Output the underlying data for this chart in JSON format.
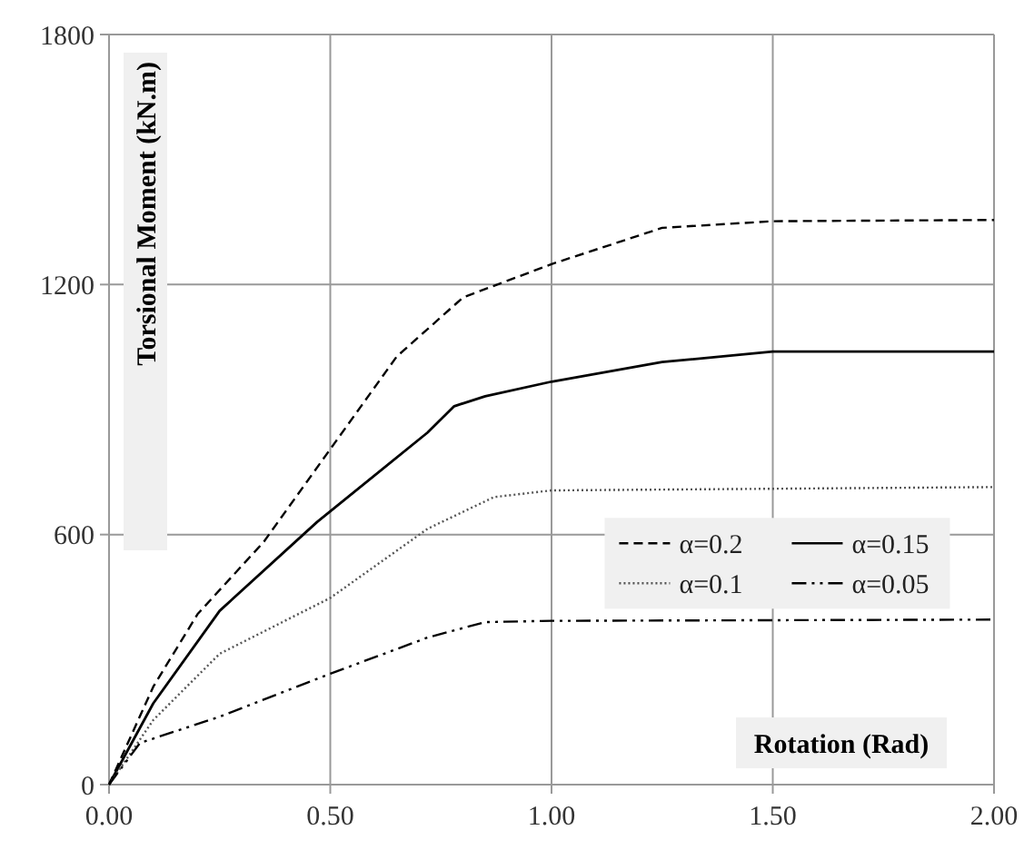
{
  "chart_data": {
    "type": "line",
    "xlabel": "Rotation (Rad)",
    "ylabel": "Torsional Moment (kN.m)",
    "xlim": [
      0,
      2
    ],
    "ylim": [
      0,
      1800
    ],
    "xticks": [
      {
        "value": 0,
        "label": "0.00"
      },
      {
        "value": 0.5,
        "label": "0.50"
      },
      {
        "value": 1,
        "label": "1.00"
      },
      {
        "value": 1.5,
        "label": "1.50"
      },
      {
        "value": 2,
        "label": "2.00"
      }
    ],
    "yticks": [
      0,
      600,
      1200,
      1800
    ],
    "grid": true,
    "legend": "right",
    "series": [
      {
        "name": "α=0.2",
        "color": "#000000",
        "line_style": "dashed",
        "x": [
          0,
          0.1,
          0.2,
          0.35,
          0.5,
          0.65,
          0.8,
          0.9,
          1.0,
          1.25,
          1.5,
          2.0
        ],
        "values": [
          0,
          235,
          409,
          583,
          805,
          1027,
          1169,
          1209,
          1249,
          1336,
          1352,
          1355
        ]
      },
      {
        "name": "α=0.15",
        "color": "#000000",
        "line_style": "solid",
        "x": [
          0,
          0.1,
          0.25,
          0.47,
          0.72,
          0.78,
          0.85,
          1.0,
          1.25,
          1.5,
          2.0
        ],
        "values": [
          0,
          195,
          417,
          630,
          845,
          908,
          932,
          967,
          1014,
          1039,
          1039
        ]
      },
      {
        "name": "α=0.1",
        "color": "#555555",
        "line_style": "dotted",
        "x": [
          0,
          0.1,
          0.25,
          0.5,
          0.72,
          0.87,
          1.0,
          2.0
        ],
        "values": [
          0,
          155,
          314,
          448,
          614,
          690,
          706,
          714
        ]
      },
      {
        "name": "α=0.05",
        "color": "#000000",
        "line_style": "dashdot",
        "x": [
          0,
          0.07,
          0.25,
          0.5,
          0.72,
          0.85,
          1.0,
          2.0
        ],
        "values": [
          0,
          100,
          163,
          266,
          353,
          390,
          393,
          396
        ]
      }
    ]
  }
}
